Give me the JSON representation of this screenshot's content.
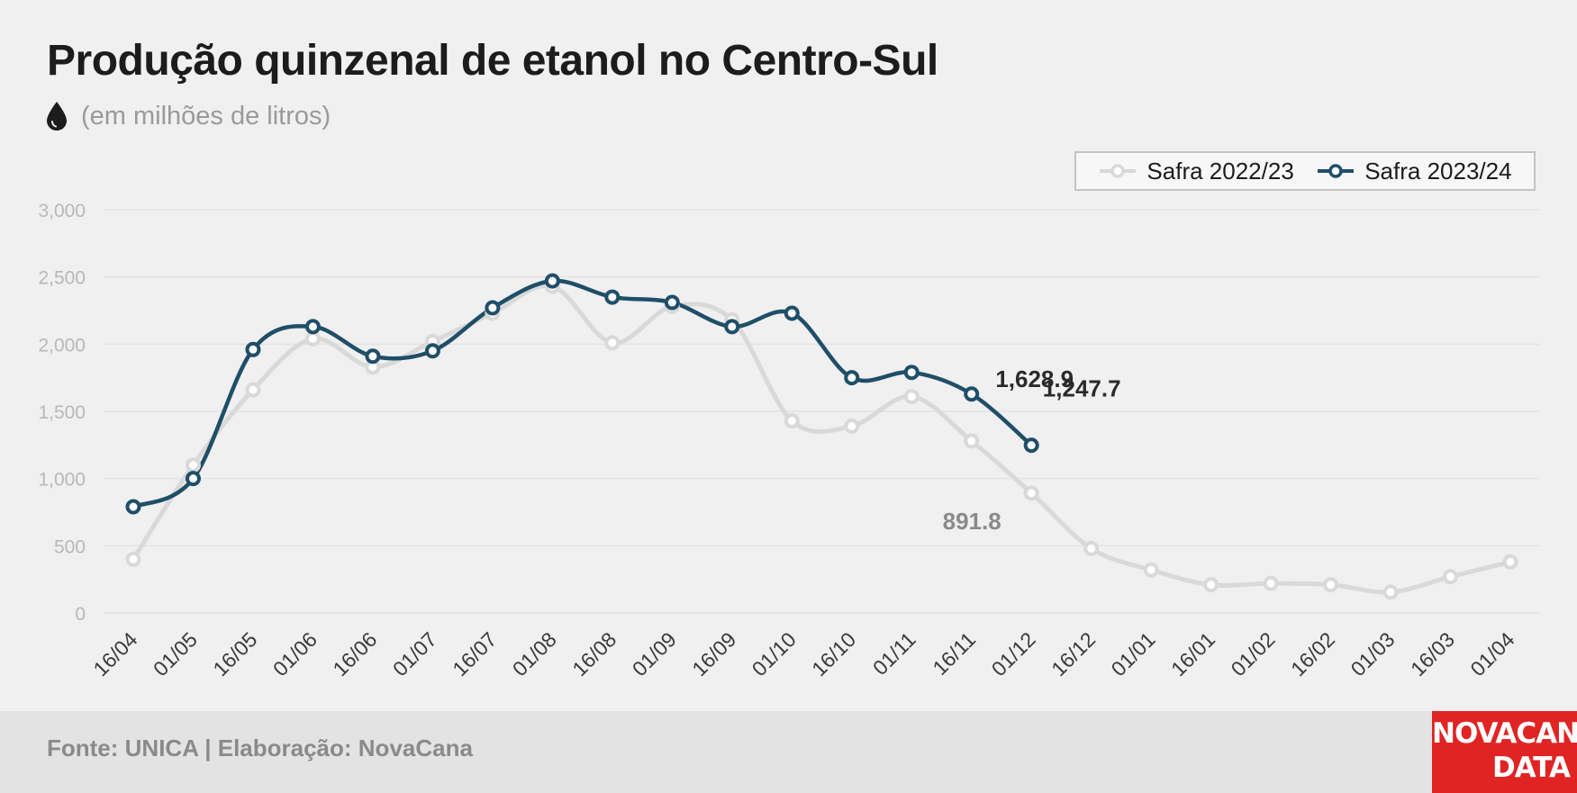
{
  "header": {
    "title": "Produção quinzenal de etanol no Centro-Sul",
    "subtitle": "(em milhões de litros)",
    "icon": "drop-icon"
  },
  "colors": {
    "series_2022": "#d9d9d9",
    "series_2023": "#1f4e69",
    "grid": "#e3e3e3",
    "tick": "#b8b8b8",
    "logo_bg": "#e02424"
  },
  "chart_data": {
    "type": "line",
    "categories": [
      "16/04",
      "01/05",
      "16/05",
      "01/06",
      "16/06",
      "01/07",
      "16/07",
      "01/08",
      "16/08",
      "01/09",
      "16/09",
      "01/10",
      "16/10",
      "01/11",
      "16/11",
      "01/12",
      "16/12",
      "01/01",
      "16/01",
      "01/02",
      "16/02",
      "01/03",
      "16/03",
      "01/04"
    ],
    "series": [
      {
        "name": "Safra 2022/23",
        "color": "#d9d9d9",
        "values": [
          400,
          1100,
          1660,
          2040,
          1830,
          2020,
          2230,
          2430,
          2010,
          2280,
          2180,
          1430,
          1390,
          1610,
          1280,
          891.8,
          480,
          320,
          210,
          220,
          210,
          155,
          270,
          380
        ]
      },
      {
        "name": "Safra 2023/24",
        "color": "#1f4e69",
        "values": [
          790,
          1000,
          1960,
          2130,
          1910,
          1950,
          2270,
          2470,
          2350,
          2310,
          2130,
          2230,
          1750,
          1790,
          1628.9,
          1247.7,
          null,
          null,
          null,
          null,
          null,
          null,
          null,
          null
        ]
      }
    ],
    "yticks": [
      "0",
      "500",
      "1,000",
      "1,500",
      "2,000",
      "2,500",
      "3,000"
    ],
    "ylim": [
      0,
      3000
    ],
    "grid": true,
    "legend_position": "top-right",
    "annotations": [
      {
        "label": "1,628.9",
        "series": 1,
        "index": 14
      },
      {
        "label": "1,247.7",
        "series": 1,
        "index": 15
      },
      {
        "label": "891.8",
        "series": 0,
        "index": 15
      }
    ]
  },
  "footer": {
    "source": "Fonte: UNICA | Elaboração: NovaCana",
    "logo_line1": "NOVACANA",
    "logo_line2": "DATA"
  }
}
